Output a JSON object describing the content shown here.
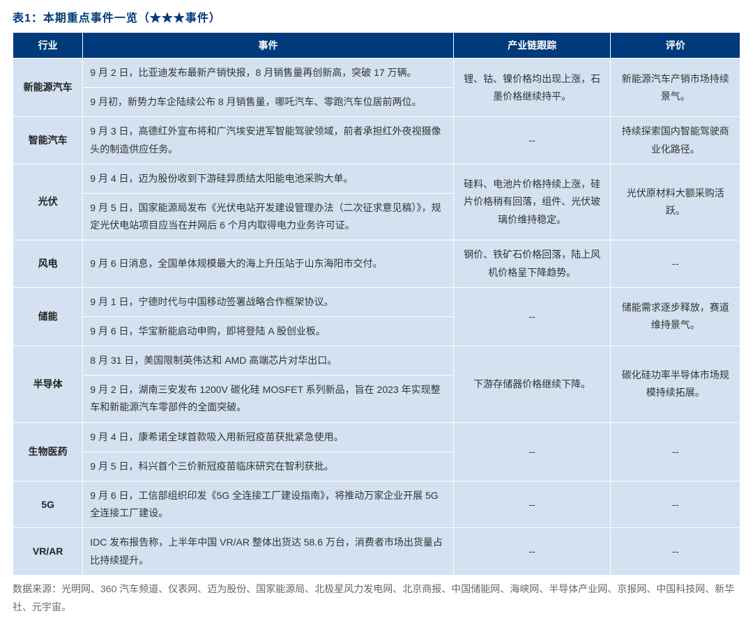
{
  "title": "表1：本期重点事件一览（★★★事件）",
  "colors": {
    "header_bg": "#003a7a",
    "header_fg": "#ffffff",
    "cell_bg": "#d3e1f0",
    "title_color": "#003a7a",
    "source_color": "#666666",
    "border_color": "#ffffff"
  },
  "headers": {
    "industry": "行业",
    "event": "事件",
    "track": "产业链跟踪",
    "rating": "评价"
  },
  "rows": [
    {
      "industry": "新能源汽车",
      "events": [
        "9 月 2 日，比亚迪发布最新产销快报，8 月销售量再创新高，突破 17 万辆。",
        "9 月初，新势力车企陆续公布 8 月销售量，哪吒汽车、零跑汽车位居前两位。"
      ],
      "track": "锂、钴、镍价格均出现上涨，石墨价格继续持平。",
      "rating": "新能源汽车产销市场持续景气。"
    },
    {
      "industry": "智能汽车",
      "events": [
        "9 月 3 日，高德红外宣布将和广汽埃安进军智能驾驶领域，前者承担红外夜视摄像头的制造供应任务。"
      ],
      "track": "--",
      "rating": "持续探索国内智能驾驶商业化路径。"
    },
    {
      "industry": "光伏",
      "events": [
        "9 月 4 日，迈为股份收到下游硅异质结太阳能电池采购大单。",
        "9 月 5 日，国家能源局发布《光伏电站开发建设管理办法（二次征求意见稿）》，规定光伏电站项目应当在并网后 6 个月内取得电力业务许可证。"
      ],
      "track": "硅料、电池片价格持续上涨，硅片价格稍有回落，组件、光伏玻璃价维持稳定。",
      "rating": "光伏原材料大额采购活跃。"
    },
    {
      "industry": "风电",
      "events": [
        "9 月 6 日消息，全国单体规模最大的海上升压站于山东海阳市交付。"
      ],
      "track": "钢价、铁矿石价格回落，陆上风机价格呈下降趋势。",
      "rating": "--"
    },
    {
      "industry": "储能",
      "events": [
        "9 月 1 日，宁德时代与中国移动签署战略合作框架协议。",
        "9 月 6 日，华宝新能启动申购，即将登陆 A 股创业板。"
      ],
      "track": "--",
      "rating": "储能需求逐步释放，赛道维持景气。"
    },
    {
      "industry": "半导体",
      "events": [
        "8 月 31 日，美国限制英伟达和 AMD 高端芯片对华出口。",
        "9 月 2 日，湖南三安发布 1200V 碳化硅 MOSFET 系列新品，旨在 2023 年实现整车和新能源汽车零部件的全面突破。"
      ],
      "track": "下游存储器价格继续下降。",
      "rating": "碳化硅功率半导体市场规模持续拓展。"
    },
    {
      "industry": "生物医药",
      "events": [
        "9 月 4 日，康希诺全球首款吸入用新冠疫苗获批紧急使用。",
        "9 月 5 日，科兴首个三价新冠疫苗临床研究在智利获批。"
      ],
      "track": "--",
      "rating": "--"
    },
    {
      "industry": "5G",
      "events": [
        "9 月 6 日，工信部组织印发《5G 全连接工厂建设指南》，将推动万家企业开展 5G 全连接工厂建设。"
      ],
      "track": "--",
      "rating": "--"
    },
    {
      "industry": "VR/AR",
      "events": [
        "IDC 发布报告称，上半年中国 VR/AR 整体出货达 58.6 万台，消费者市场出货量占比持续提升。"
      ],
      "track": "--",
      "rating": "--"
    }
  ],
  "source": "数据来源：光明网、360 汽车频道、仪表网、迈为股份、国家能源局、北极星风力发电网、北京商报、中国储能网、海峡网、半导体产业网、京报网、中国科技网、新华社、元宇宙。"
}
